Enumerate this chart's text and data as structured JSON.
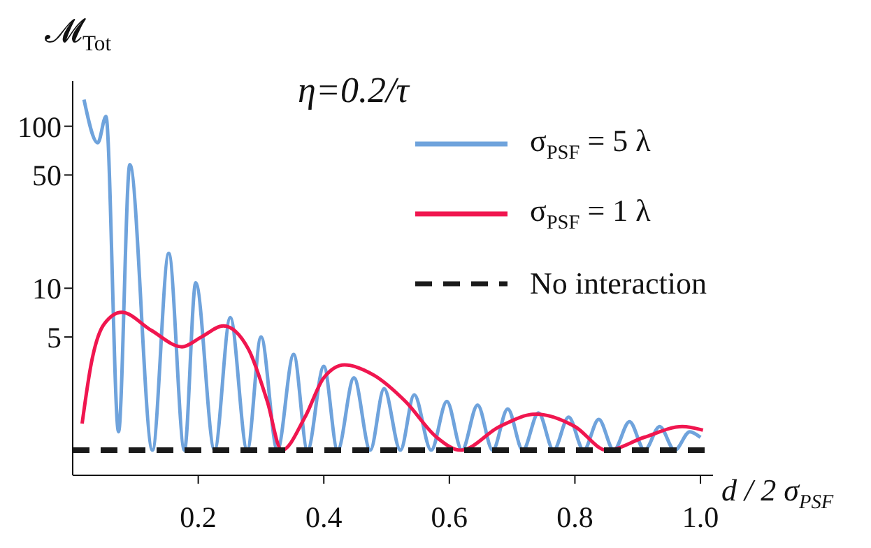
{
  "chart_data": {
    "type": "line",
    "title": "η=0.2/τ",
    "xlabel": "d / 2 σ$_{PSF}$",
    "ylabel": "𝓜$_{Tot}$",
    "log": "y",
    "legend": "top right",
    "marker": "none",
    "xlim": [
      0,
      1.02
    ],
    "xticks": [
      0.2,
      0.4,
      0.6,
      0.8,
      {
        "value": 1,
        "label": "1.0"
      }
    ],
    "ylim": [
      0.7,
      190
    ],
    "yticks": [
      5,
      10,
      50,
      100
    ],
    "series": [
      {
        "name": "σ$_{PSF}$ = 5 λ",
        "color": "#6fa3dc",
        "line_style": "solid",
        "x": [
          0.018,
          0.04,
          0.053,
          0.073,
          0.091,
          0.127,
          0.153,
          0.178,
          0.196,
          0.226,
          0.251,
          0.278,
          0.3,
          0.326,
          0.352,
          0.374,
          0.4,
          0.422,
          0.448,
          0.474,
          0.496,
          0.522,
          0.544,
          0.571,
          0.596,
          0.62,
          0.645,
          0.669,
          0.693,
          0.717,
          0.742,
          0.766,
          0.79,
          0.814,
          0.838,
          0.862,
          0.887,
          0.911,
          0.935,
          0.959,
          0.983,
          1.0
        ],
        "values": [
          146,
          79,
          115,
          1.3,
          58,
          1,
          16.4,
          1,
          10.8,
          1,
          6.6,
          1,
          5,
          1,
          3.9,
          1,
          3.3,
          1,
          2.8,
          1,
          2.4,
          1,
          2.2,
          1,
          2.0,
          1,
          1.9,
          1,
          1.8,
          1,
          1.7,
          1,
          1.6,
          1,
          1.55,
          1,
          1.5,
          1,
          1.4,
          1,
          1.3,
          1.2
        ]
      },
      {
        "name": "σ$_{PSF}$ = 1 λ",
        "color": "#f0164f",
        "line_style": "solid",
        "x": [
          0.015,
          0.03,
          0.05,
          0.078,
          0.125,
          0.174,
          0.205,
          0.24,
          0.28,
          0.31,
          0.333,
          0.37,
          0.4,
          0.433,
          0.48,
          0.53,
          0.58,
          0.618,
          0.68,
          0.738,
          0.8,
          0.851,
          0.91,
          0.971,
          1.004
        ],
        "values": [
          1.46,
          3.5,
          6.0,
          7.1,
          5.5,
          4.35,
          5.0,
          5.85,
          4.2,
          2.0,
          1.0,
          1.6,
          2.8,
          3.36,
          2.9,
          2.0,
          1.2,
          1.0,
          1.4,
          1.67,
          1.4,
          1.0,
          1.2,
          1.4,
          1.33
        ]
      },
      {
        "name": "No interaction",
        "color": "#1a1a1a",
        "line_style": "dashed",
        "x": [
          0,
          1.02
        ],
        "values": [
          1,
          1
        ]
      }
    ]
  }
}
